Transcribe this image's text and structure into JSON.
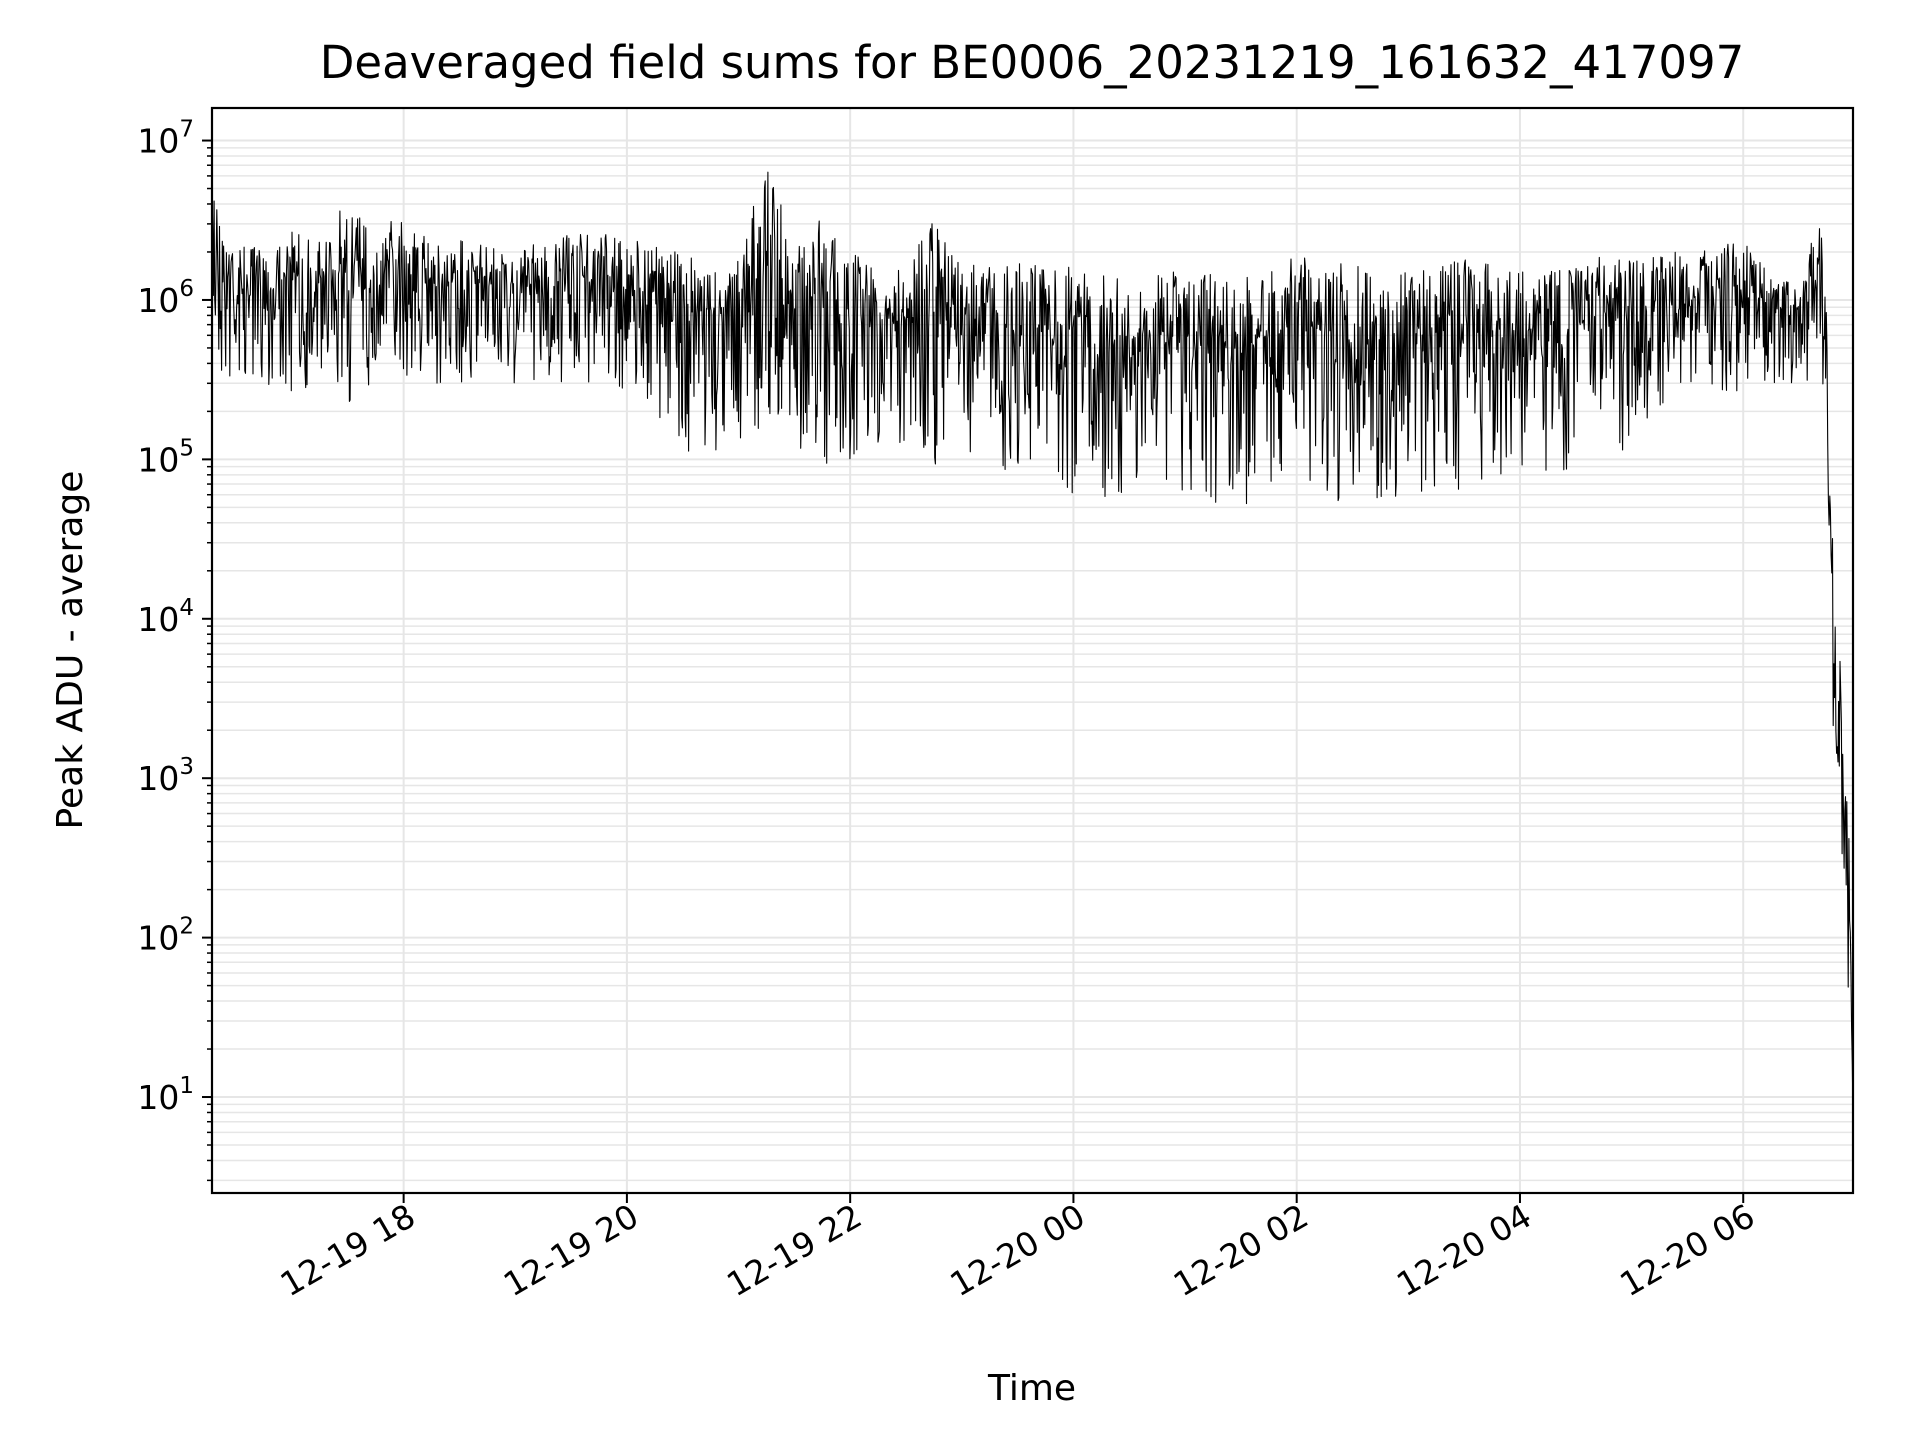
{
  "chart_data": {
    "type": "line",
    "title": "Deaveraged field sums for BE0006_20231219_161632_417097",
    "xlabel": "Time",
    "ylabel": "Peak ADU - average",
    "x_scale": "time",
    "y_scale": "log",
    "xlim": [
      "2023-12-19 16:17",
      "2023-12-20 06:59"
    ],
    "ylim": [
      2.5,
      16000000
    ],
    "grid": true,
    "legend": "none",
    "line_color": "#000000",
    "grid_color": "#e6e6e6",
    "x_ticks": [
      {
        "time": "2023-12-19 18:00",
        "label": "12-19 18"
      },
      {
        "time": "2023-12-19 20:00",
        "label": "12-19 20"
      },
      {
        "time": "2023-12-19 22:00",
        "label": "12-19 22"
      },
      {
        "time": "2023-12-20 00:00",
        "label": "12-20 00"
      },
      {
        "time": "2023-12-20 02:00",
        "label": "12-20 02"
      },
      {
        "time": "2023-12-20 04:00",
        "label": "12-20 04"
      },
      {
        "time": "2023-12-20 06:00",
        "label": "12-20 06"
      }
    ],
    "y_ticks": [
      {
        "value": 10,
        "base": "10",
        "exp": "1"
      },
      {
        "value": 100,
        "base": "10",
        "exp": "2"
      },
      {
        "value": 1000,
        "base": "10",
        "exp": "3"
      },
      {
        "value": 10000,
        "base": "10",
        "exp": "4"
      },
      {
        "value": 100000,
        "base": "10",
        "exp": "5"
      },
      {
        "value": 1000000,
        "base": "10",
        "exp": "6"
      },
      {
        "value": 10000000,
        "base": "10",
        "exp": "7"
      }
    ],
    "series": [
      {
        "x": [
          "2023-12-19 16:17",
          "2023-12-19 16:30",
          "2023-12-19 16:45",
          "2023-12-19 17:00",
          "2023-12-19 17:15",
          "2023-12-19 17:30",
          "2023-12-19 17:45",
          "2023-12-19 18:00",
          "2023-12-19 18:15",
          "2023-12-19 18:30",
          "2023-12-19 18:45",
          "2023-12-19 19:00",
          "2023-12-19 19:15",
          "2023-12-19 19:30",
          "2023-12-19 19:45",
          "2023-12-19 20:00",
          "2023-12-19 20:15",
          "2023-12-19 20:30",
          "2023-12-19 20:45",
          "2023-12-19 21:00",
          "2023-12-19 21:15",
          "2023-12-19 21:30",
          "2023-12-19 21:45",
          "2023-12-19 22:00",
          "2023-12-19 22:15",
          "2023-12-19 22:30",
          "2023-12-19 22:45",
          "2023-12-19 23:00",
          "2023-12-19 23:15",
          "2023-12-19 23:30",
          "2023-12-19 23:45",
          "2023-12-20 00:00",
          "2023-12-20 00:15",
          "2023-12-20 00:30",
          "2023-12-20 00:45",
          "2023-12-20 01:00",
          "2023-12-20 01:15",
          "2023-12-20 01:30",
          "2023-12-20 01:45",
          "2023-12-20 02:00",
          "2023-12-20 02:15",
          "2023-12-20 02:30",
          "2023-12-20 02:45",
          "2023-12-20 03:00",
          "2023-12-20 03:15",
          "2023-12-20 03:30",
          "2023-12-20 03:45",
          "2023-12-20 04:00",
          "2023-12-20 04:15",
          "2023-12-20 04:30",
          "2023-12-20 04:45",
          "2023-12-20 05:00",
          "2023-12-20 05:15",
          "2023-12-20 05:30",
          "2023-12-20 05:45",
          "2023-12-20 06:00",
          "2023-12-20 06:15",
          "2023-12-20 06:30",
          "2023-12-20 06:42",
          "2023-12-20 06:45",
          "2023-12-20 06:48",
          "2023-12-20 06:51",
          "2023-12-20 06:54",
          "2023-12-20 06:56",
          "2023-12-20 06:58",
          "2023-12-20 06:59"
        ],
        "y_max": [
          5500000,
          2300000,
          2100000,
          2800000,
          2400000,
          4500000,
          2500000,
          4500000,
          2300000,
          2400000,
          2200000,
          2200000,
          2300000,
          2600000,
          2800000,
          2500000,
          2200000,
          2000000,
          1600000,
          1800000,
          8000000,
          2200000,
          3500000,
          2200000,
          1600000,
          1700000,
          4300000,
          1700000,
          1600000,
          1700000,
          1700000,
          1600000,
          1500000,
          1400000,
          1500000,
          1500000,
          1500000,
          1500000,
          1500000,
          2000000,
          1600000,
          1800000,
          1500000,
          1500000,
          1600000,
          1900000,
          1700000,
          1500000,
          1500000,
          1600000,
          1900000,
          1800000,
          2000000,
          2000000,
          2200000,
          2300000,
          1500000,
          1400000,
          3800000,
          700000,
          35000,
          15000,
          1600,
          900,
          200,
          8
        ],
        "y_min": [
          280000,
          270000,
          300000,
          250000,
          300000,
          200000,
          300000,
          320000,
          310000,
          260000,
          280000,
          280000,
          290000,
          300000,
          280000,
          270000,
          200000,
          110000,
          95000,
          130000,
          150000,
          120000,
          80000,
          75000,
          120000,
          110000,
          90000,
          100000,
          90000,
          80000,
          70000,
          55000,
          35000,
          70000,
          80000,
          60000,
          50000,
          45000,
          60000,
          55000,
          60000,
          50000,
          55000,
          60000,
          60000,
          60000,
          60000,
          70000,
          80000,
          90000,
          100000,
          110000,
          200000,
          300000,
          280000,
          250000,
          280000,
          300000,
          300000,
          200000,
          1000,
          600,
          200,
          20,
          5,
          5
        ]
      }
    ]
  }
}
